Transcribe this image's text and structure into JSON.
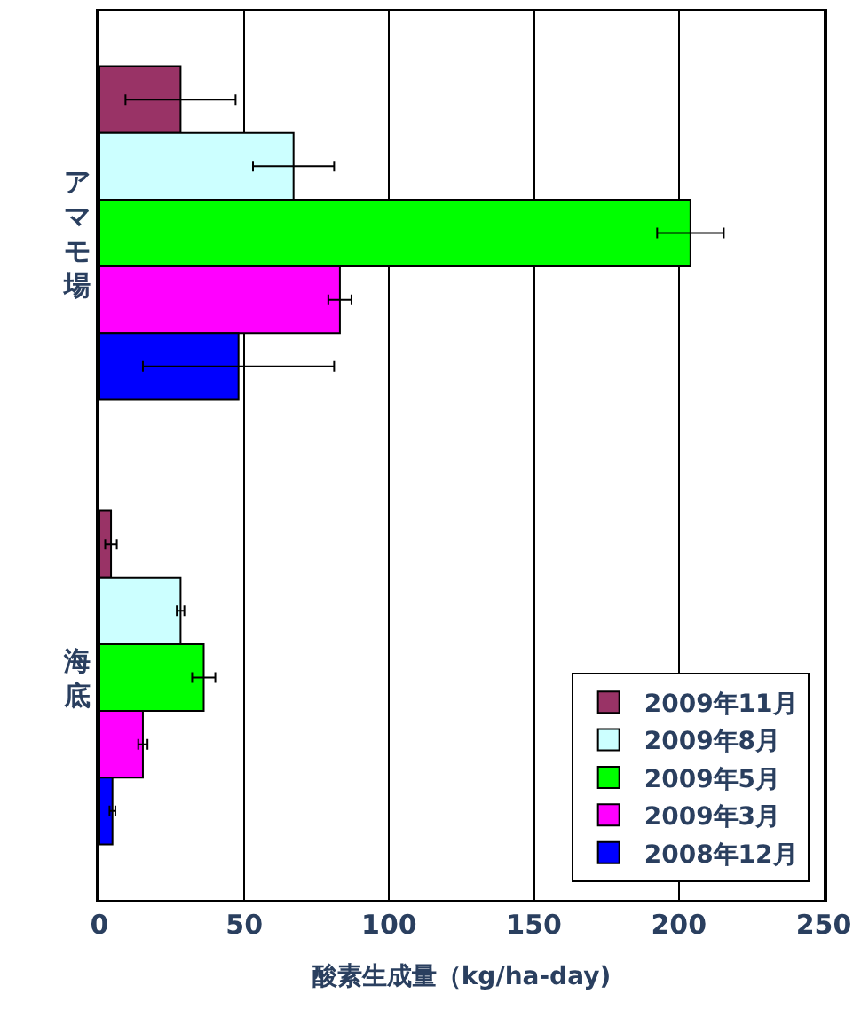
{
  "chart_data": {
    "type": "bar",
    "orientation": "horizontal",
    "xlabel": "酸素生成量（kg/ha-day)",
    "categories": [
      "アマモ場",
      "海底"
    ],
    "series": [
      {
        "name": "2009年11月",
        "color": "#993366",
        "values": [
          28,
          4
        ],
        "errors": [
          19,
          2
        ]
      },
      {
        "name": "2009年8月",
        "color": "#ccffff",
        "values": [
          67,
          28
        ],
        "errors": [
          14,
          1.3
        ]
      },
      {
        "name": "2009年5月",
        "color": "#00ff00",
        "values": [
          204,
          36
        ],
        "errors": [
          11.5,
          4
        ]
      },
      {
        "name": "2009年3月",
        "color": "#ff00ff",
        "values": [
          83,
          15
        ],
        "errors": [
          4,
          1.6
        ]
      },
      {
        "name": "2008年12月",
        "color": "#0000ff",
        "values": [
          48,
          4.5
        ],
        "errors": [
          33,
          1
        ]
      }
    ],
    "xlim": [
      0,
      250
    ],
    "xticks": [
      0,
      50,
      100,
      150,
      200,
      250
    ],
    "grid": "x",
    "legend": "bottom right"
  }
}
